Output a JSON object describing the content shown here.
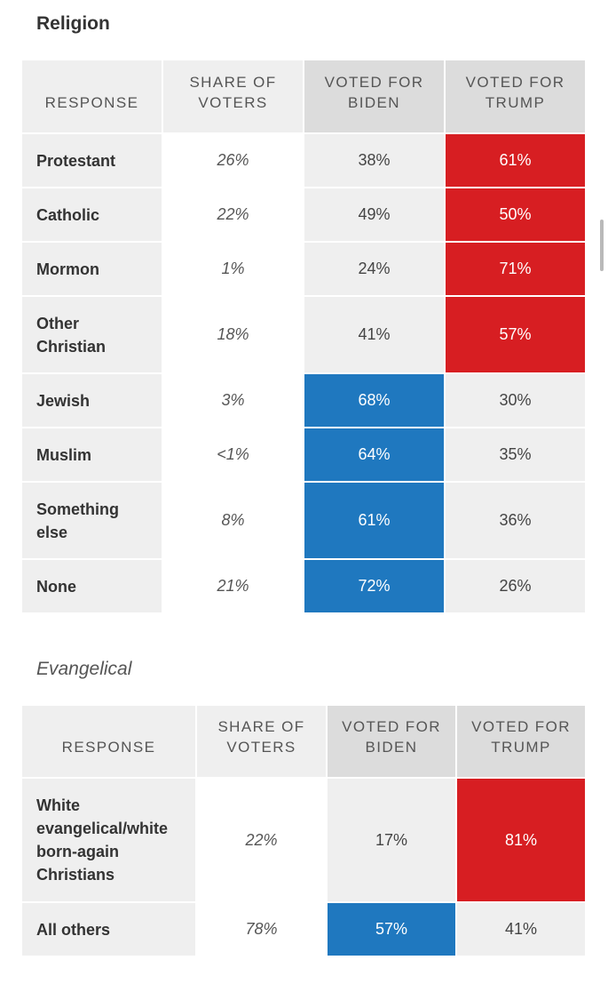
{
  "colors": {
    "biden": "#1f78bf",
    "trump": "#d71e22",
    "header_gray": "#dcdcdc",
    "row_gray": "#efefef"
  },
  "religion": {
    "title": "Religion",
    "headers": {
      "response": "RESPONSE",
      "share": "SHARE OF VOTERS",
      "biden": "VOTED FOR BIDEN",
      "trump": "VOTED FOR TRUMP"
    },
    "rows": [
      {
        "response": "Protestant",
        "share": "26%",
        "biden": "38%",
        "trump": "61%"
      },
      {
        "response": "Catholic",
        "share": "22%",
        "biden": "49%",
        "trump": "50%"
      },
      {
        "response": "Mormon",
        "share": "1%",
        "biden": "24%",
        "trump": "71%"
      },
      {
        "response": "Other Christian",
        "share": "18%",
        "biden": "41%",
        "trump": "57%"
      },
      {
        "response": "Jewish",
        "share": "3%",
        "biden": "68%",
        "trump": "30%"
      },
      {
        "response": "Muslim",
        "share": "<1%",
        "biden": "64%",
        "trump": "35%"
      },
      {
        "response": "Something else",
        "share": "8%",
        "biden": "61%",
        "trump": "36%"
      },
      {
        "response": "None",
        "share": "21%",
        "biden": "72%",
        "trump": "26%"
      }
    ]
  },
  "evangelical": {
    "title": "Evangelical",
    "headers": {
      "response": "RESPONSE",
      "share": "SHARE OF VOTERS",
      "biden": "VOTED FOR BIDEN",
      "trump": "VOTED FOR TRUMP"
    },
    "rows": [
      {
        "response": "White evangelical/white born-again Christians",
        "share": "22%",
        "biden": "17%",
        "trump": "81%"
      },
      {
        "response": "All others",
        "share": "78%",
        "biden": "57%",
        "trump": "41%"
      }
    ]
  }
}
